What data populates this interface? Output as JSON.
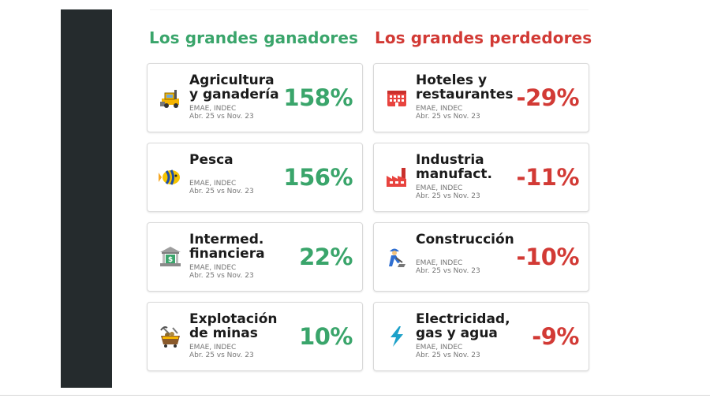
{
  "titles": {
    "winners": "Los grandes ganadores",
    "losers": "Los grandes perdedores"
  },
  "winners": [
    {
      "name_line1": "Agricultura",
      "name_line2": "y ganadería",
      "source": "EMAE, INDEC",
      "period": "Abr. 25 vs Nov. 23",
      "value": "158%",
      "icon": "harvester-icon"
    },
    {
      "name_line1": "Pesca",
      "name_line2": "",
      "source": "EMAE, INDEC",
      "period": "Abr. 25 vs Nov. 23",
      "value": "156%",
      "icon": "fish-icon"
    },
    {
      "name_line1": "Intermed.",
      "name_line2": "financiera",
      "source": "EMAE, INDEC",
      "period": "Abr. 25 vs Nov. 23",
      "value": "22%",
      "icon": "bank-icon"
    },
    {
      "name_line1": "Explotación",
      "name_line2": "de minas",
      "source": "EMAE, INDEC",
      "period": "Abr. 25 vs Nov. 23",
      "value": "10%",
      "icon": "mine-cart-icon"
    }
  ],
  "losers": [
    {
      "name_line1": "Hoteles y",
      "name_line2": "restaurantes",
      "source": "EMAE, INDEC",
      "period": "Abr. 25 vs Nov. 23",
      "value": "-29%",
      "icon": "hotel-icon"
    },
    {
      "name_line1": "Industria",
      "name_line2": "manufact.",
      "source": "EMAE, INDEC",
      "period": "Abr. 25 vs Nov. 23",
      "value": "-11%",
      "icon": "factory-icon"
    },
    {
      "name_line1": "Construcción",
      "name_line2": "",
      "source": "EMAE, INDEC",
      "period": "Abr. 25 vs Nov. 23",
      "value": "-10%",
      "icon": "construction-worker-icon"
    },
    {
      "name_line1": "Electricidad,",
      "name_line2": "gas y agua",
      "source": "EMAE, INDEC",
      "period": "Abr. 25 vs Nov. 23",
      "value": "-9%",
      "icon": "lightning-icon"
    }
  ],
  "colors": {
    "winners": "#3aa56b",
    "losers": "#d23a35",
    "sidebar": "#252b2d"
  }
}
